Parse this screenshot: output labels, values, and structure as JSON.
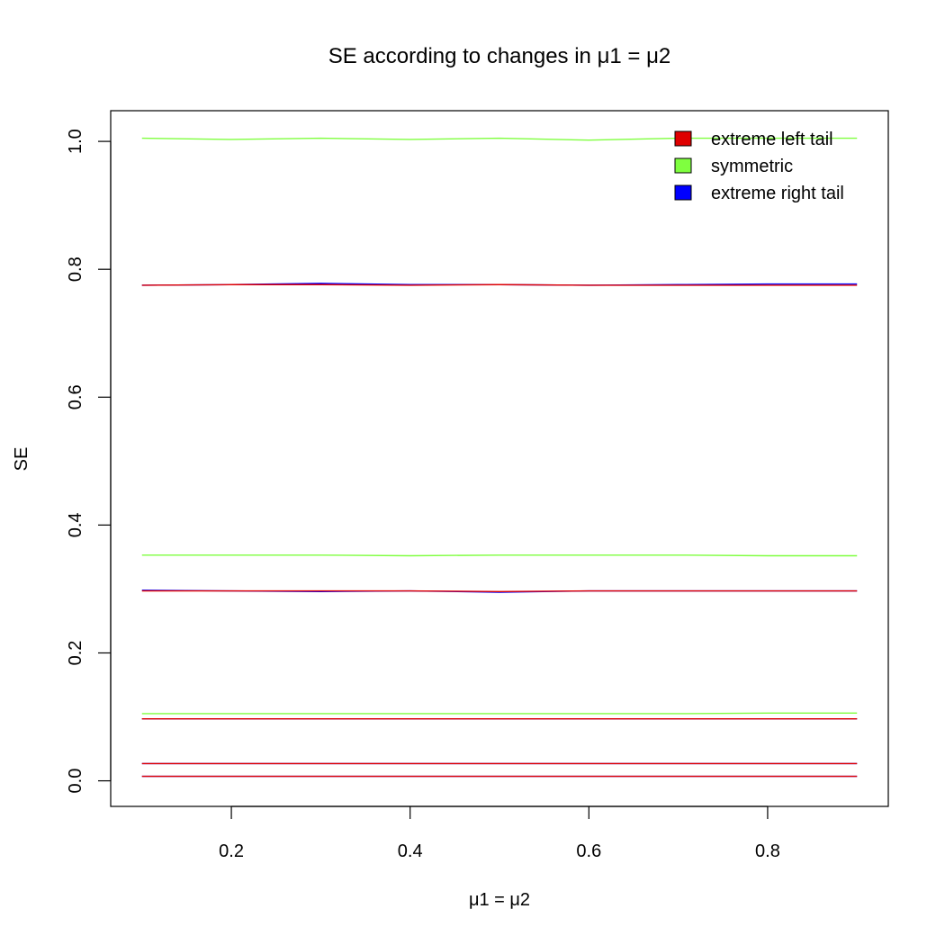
{
  "chart_data": {
    "type": "line",
    "title": "SE according to changes in μ1 = μ2",
    "xlabel": "μ1 = μ2",
    "ylabel": "SE",
    "xlim": [
      0.065,
      0.935
    ],
    "ylim": [
      -0.04,
      1.048
    ],
    "xticks": [
      0.2,
      0.4,
      0.6,
      0.8
    ],
    "yticks": [
      0.0,
      0.2,
      0.4,
      0.6,
      0.8,
      1.0
    ],
    "xtick_labels": [
      "0.2",
      "0.4",
      "0.6",
      "0.8"
    ],
    "ytick_labels": [
      "0.0",
      "0.2",
      "0.4",
      "0.6",
      "0.8",
      "1.0"
    ],
    "grid": false,
    "legend_position": "top-right",
    "x": [
      0.1,
      0.2,
      0.3,
      0.4,
      0.5,
      0.6,
      0.7,
      0.8,
      0.9
    ],
    "legend": [
      {
        "label": "extreme left tail",
        "color": "#DF0000"
      },
      {
        "label": "symmetric",
        "color": "#7FFF3F"
      },
      {
        "label": "extreme right tail",
        "color": "#0000FF"
      }
    ],
    "series": [
      {
        "group": "symmetric",
        "color": "#7FFF3F",
        "values": [
          1.005,
          1.003,
          1.005,
          1.003,
          1.005,
          1.002,
          1.005,
          1.005,
          1.005
        ]
      },
      {
        "group": "symmetric",
        "color": "#7FFF3F",
        "values": [
          0.353,
          0.353,
          0.353,
          0.352,
          0.353,
          0.353,
          0.353,
          0.352,
          0.352
        ]
      },
      {
        "group": "symmetric",
        "color": "#7FFF3F",
        "values": [
          0.105,
          0.105,
          0.105,
          0.105,
          0.105,
          0.105,
          0.105,
          0.106,
          0.106
        ]
      },
      {
        "group": "extreme right tail",
        "color": "#0000FF",
        "values": [
          0.775,
          0.776,
          0.778,
          0.776,
          0.776,
          0.775,
          0.776,
          0.777,
          0.777
        ]
      },
      {
        "group": "extreme right tail",
        "color": "#0000FF",
        "values": [
          0.298,
          0.297,
          0.296,
          0.297,
          0.295,
          0.297,
          0.297,
          0.297,
          0.297
        ]
      },
      {
        "group": "extreme right tail",
        "color": "#0000FF",
        "values": [
          0.097,
          0.097,
          0.097,
          0.097,
          0.097,
          0.097,
          0.097,
          0.097,
          0.097
        ]
      },
      {
        "group": "extreme right tail",
        "color": "#0000FF",
        "values": [
          0.027,
          0.027,
          0.027,
          0.027,
          0.027,
          0.027,
          0.027,
          0.027,
          0.027
        ]
      },
      {
        "group": "extreme right tail",
        "color": "#0000FF",
        "values": [
          0.007,
          0.007,
          0.007,
          0.007,
          0.007,
          0.007,
          0.007,
          0.007,
          0.007
        ]
      },
      {
        "group": "extreme left tail",
        "color": "#DF0000",
        "values": [
          0.775,
          0.776,
          0.776,
          0.775,
          0.776,
          0.775,
          0.775,
          0.775,
          0.775
        ]
      },
      {
        "group": "extreme left tail",
        "color": "#DF0000",
        "values": [
          0.297,
          0.297,
          0.297,
          0.297,
          0.296,
          0.297,
          0.297,
          0.297,
          0.297
        ]
      },
      {
        "group": "extreme left tail",
        "color": "#DF0000",
        "values": [
          0.097,
          0.097,
          0.097,
          0.097,
          0.097,
          0.097,
          0.097,
          0.097,
          0.097
        ]
      },
      {
        "group": "extreme left tail",
        "color": "#DF0000",
        "values": [
          0.027,
          0.027,
          0.027,
          0.027,
          0.027,
          0.027,
          0.027,
          0.027,
          0.027
        ]
      },
      {
        "group": "extreme left tail",
        "color": "#DF0000",
        "values": [
          0.007,
          0.007,
          0.007,
          0.007,
          0.007,
          0.007,
          0.007,
          0.007,
          0.007
        ]
      }
    ]
  }
}
